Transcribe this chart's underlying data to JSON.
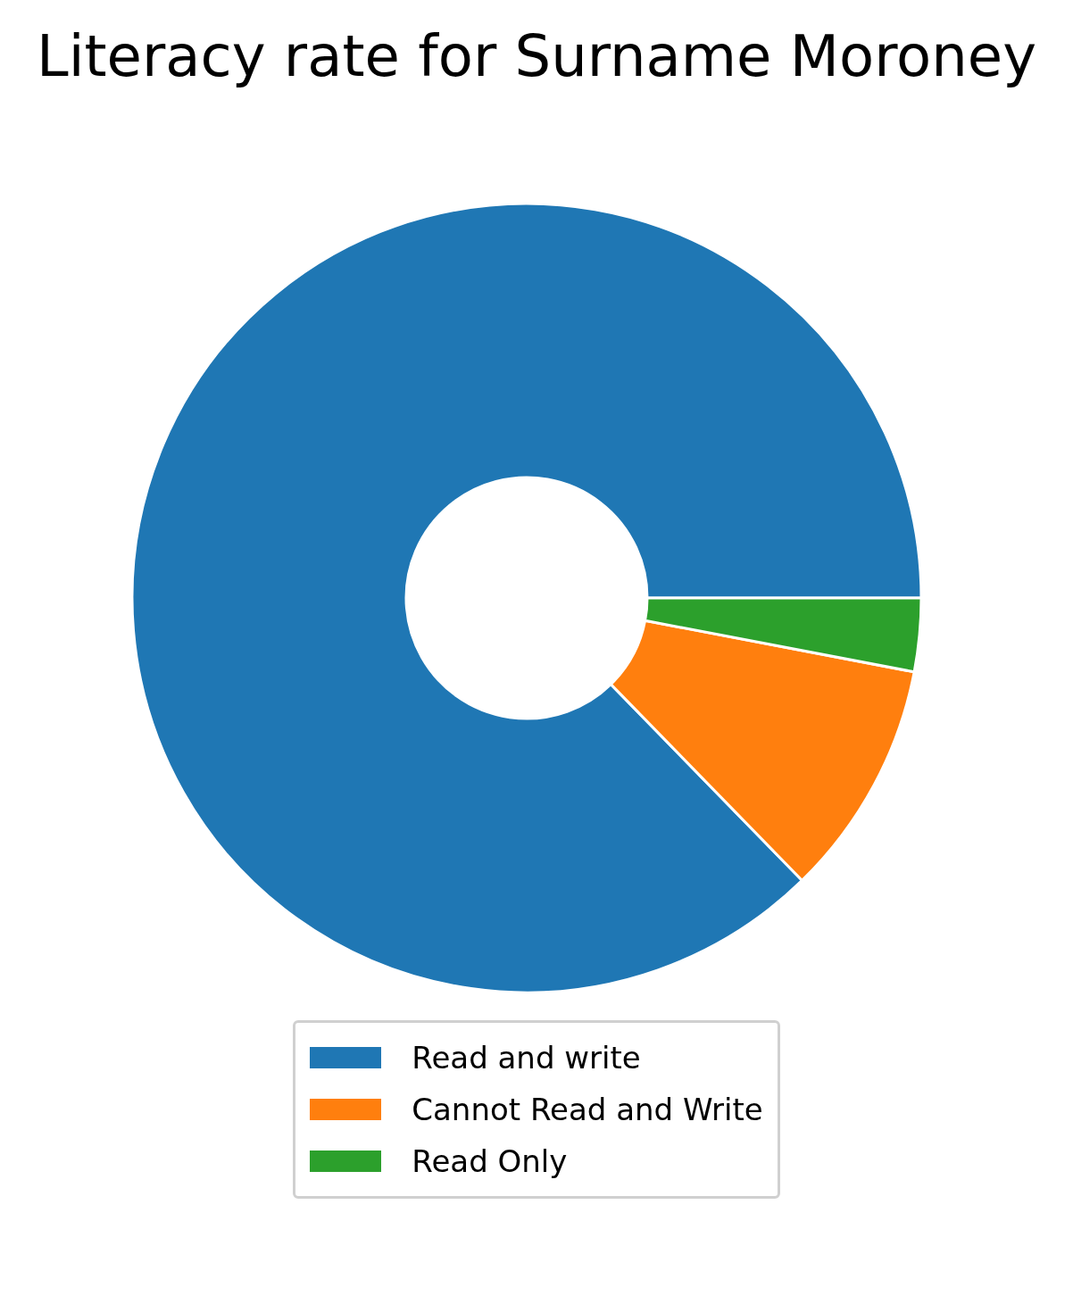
{
  "chart_data": {
    "type": "donut",
    "title": "Literacy rate for Surname Moroney",
    "categories": [
      "Read and write",
      "Cannot Read and Write",
      "Read Only"
    ],
    "values": [
      87.3,
      9.7,
      3.0
    ],
    "colors": [
      "#1f77b4",
      "#ff7f0e",
      "#2ca02c"
    ],
    "legend": "bottom"
  }
}
